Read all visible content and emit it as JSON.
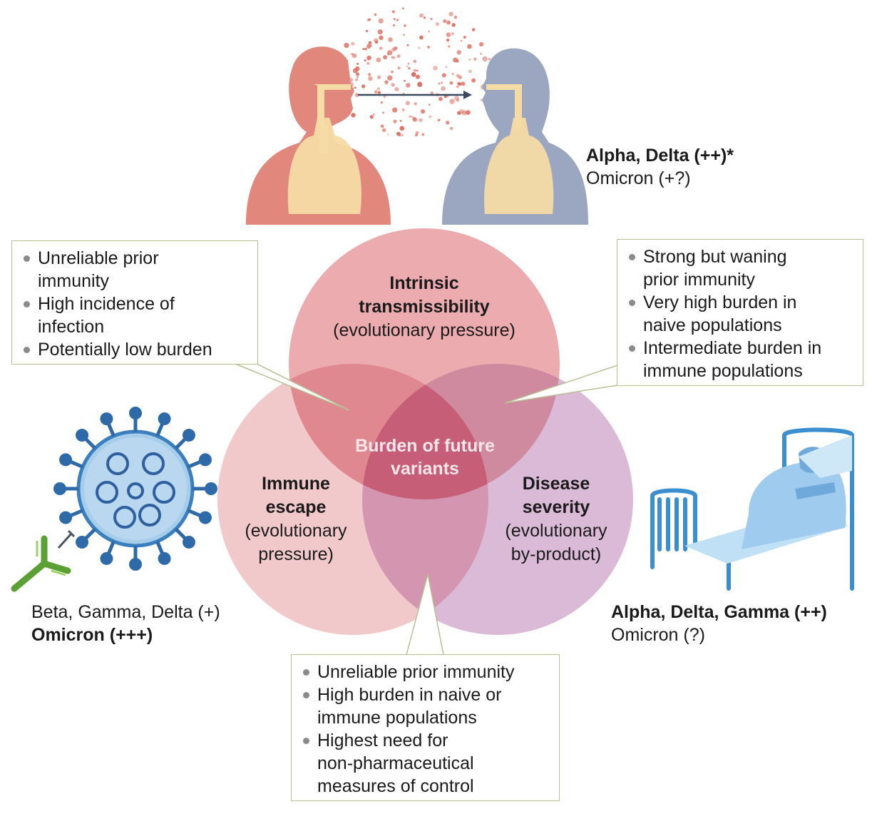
{
  "venn": {
    "transmissibility": {
      "title_line1": "Intrinsic",
      "title_line2": "transmissibility",
      "subtitle": "(evolutionary pressure)"
    },
    "immune_escape": {
      "title_line1": "Immune",
      "title_line2": "escape",
      "subtitle_line1": "(evolutionary",
      "subtitle_line2": "pressure)"
    },
    "disease_severity": {
      "title_line1": "Disease",
      "title_line2": "severity",
      "subtitle_line1": "(evolutionary",
      "subtitle_line2": "by-product)"
    },
    "center_line1": "Burden of future",
    "center_line2": "variants"
  },
  "variants": {
    "transmissibility_bold": "Alpha, Delta (++)*",
    "transmissibility_normal": "Omicron (+?)",
    "escape_normal": "Beta, Gamma, Delta (+)",
    "escape_bold": "Omicron (+++)",
    "severity_bold": "Alpha, Delta, Gamma (++)",
    "severity_normal": "Omicron (?)"
  },
  "callouts": {
    "top_left": [
      "Unreliable prior",
      "immunity",
      "High incidence of",
      "infection",
      "Potentially low burden"
    ],
    "top_right": [
      "Strong but waning",
      "prior immunity",
      "Very high burden in",
      "naive populations",
      "Intermediate burden in",
      "immune populations"
    ],
    "bottom": [
      "Unreliable prior immunity",
      "High burden in naive or",
      "immune populations",
      "Highest need for",
      "non-pharmaceutical",
      "measures of control"
    ]
  },
  "colors": {
    "transmissibility_circle": "#e9a3a8",
    "escape_circle": "#f0c4c6",
    "severity_circle": "#d7b1d4",
    "center": "#c45a72",
    "callout_border": "#b9bf95",
    "person_left": "#e2877c",
    "person_right": "#9aa6c0",
    "lungs": "#f5dba5",
    "virus": "#2f6aa8",
    "antibody": "#5aa033",
    "bed": "#3b8fd0"
  }
}
